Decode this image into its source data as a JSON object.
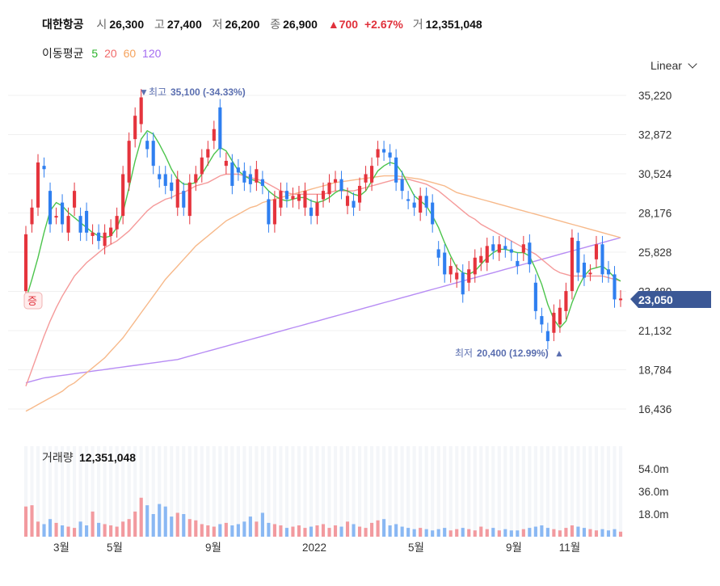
{
  "header": {
    "name": "대한항공",
    "open_label": "시",
    "open": "26,300",
    "high_label": "고",
    "high": "27,400",
    "low_label": "저",
    "low": "26,200",
    "close_label": "종",
    "close": "26,900",
    "change": "700",
    "change_pct": "+2.67%",
    "volume_label": "거",
    "volume": "12,351,048"
  },
  "ma_legend": {
    "label": "이동평균",
    "items": [
      {
        "period": "5",
        "color": "#2ab32a"
      },
      {
        "period": "20",
        "color": "#f16a6a"
      },
      {
        "period": "60",
        "color": "#f5a25c"
      },
      {
        "period": "120",
        "color": "#a46cf0"
      }
    ]
  },
  "scale_selector": {
    "label": "Linear"
  },
  "chart_data": {
    "type": "candlestick",
    "price_axis": {
      "ticks": [
        "35,220",
        "32,872",
        "30,524",
        "28,176",
        "25,828",
        "23,480",
        "21,132",
        "18,784",
        "16,436"
      ],
      "ylim": [
        15000,
        36500
      ]
    },
    "current_price": "23,050",
    "max_annotation": {
      "label": "최고",
      "value": "35,100 (-34.33%)"
    },
    "min_annotation": {
      "label": "최저",
      "value": "20,400 (12.99%)"
    },
    "left_marker": "증",
    "x_labels": [
      "3월",
      "5월",
      "9월",
      "2022",
      "5월",
      "9월",
      "11월"
    ],
    "candles": [
      {
        "o": 23500,
        "c": 26900
      },
      {
        "o": 27500,
        "c": 28500
      },
      {
        "o": 28500,
        "c": 31200
      },
      {
        "o": 31000,
        "c": 30800
      },
      {
        "o": 29500,
        "c": 27500
      },
      {
        "o": 28000,
        "c": 28000
      },
      {
        "o": 28800,
        "c": 27500
      },
      {
        "o": 27000,
        "c": 28000
      },
      {
        "o": 28500,
        "c": 29500
      },
      {
        "o": 28000,
        "c": 27000
      },
      {
        "o": 28300,
        "c": 27000
      },
      {
        "o": 26800,
        "c": 27000
      },
      {
        "o": 27000,
        "c": 26500
      },
      {
        "o": 26200,
        "c": 27000
      },
      {
        "o": 26800,
        "c": 27300
      },
      {
        "o": 27200,
        "c": 28000
      },
      {
        "o": 28000,
        "c": 30500
      },
      {
        "o": 30000,
        "c": 32500
      },
      {
        "o": 32600,
        "c": 34000
      },
      {
        "o": 33500,
        "c": 35100
      },
      {
        "o": 32500,
        "c": 32000
      },
      {
        "o": 32500,
        "c": 31000
      },
      {
        "o": 30500,
        "c": 30200
      },
      {
        "o": 30500,
        "c": 29800
      },
      {
        "o": 30000,
        "c": 29500
      },
      {
        "o": 28500,
        "c": 30200
      },
      {
        "o": 29500,
        "c": 28500
      },
      {
        "o": 28000,
        "c": 30000
      },
      {
        "o": 30000,
        "c": 30500
      },
      {
        "o": 30500,
        "c": 31500
      },
      {
        "o": 31500,
        "c": 32000
      },
      {
        "o": 32500,
        "c": 33200
      },
      {
        "o": 34500,
        "c": 32000
      },
      {
        "o": 31000,
        "c": 31300
      },
      {
        "o": 31200,
        "c": 29800
      },
      {
        "o": 30900,
        "c": 30600
      },
      {
        "o": 30700,
        "c": 30000
      },
      {
        "o": 30500,
        "c": 29900
      },
      {
        "o": 30000,
        "c": 30800
      },
      {
        "o": 30200,
        "c": 29800
      },
      {
        "o": 29000,
        "c": 27500
      },
      {
        "o": 27500,
        "c": 29000
      },
      {
        "o": 28500,
        "c": 29500
      },
      {
        "o": 29500,
        "c": 29000
      },
      {
        "o": 29000,
        "c": 29200
      },
      {
        "o": 28900,
        "c": 29300
      },
      {
        "o": 28500,
        "c": 29500
      },
      {
        "o": 28500,
        "c": 28000
      },
      {
        "o": 28000,
        "c": 28800
      },
      {
        "o": 29000,
        "c": 29500
      },
      {
        "o": 29300,
        "c": 30000
      },
      {
        "o": 30000,
        "c": 30200
      },
      {
        "o": 30200,
        "c": 29500
      },
      {
        "o": 28600,
        "c": 29200
      },
      {
        "o": 28900,
        "c": 28500
      },
      {
        "o": 28800,
        "c": 29800
      },
      {
        "o": 30000,
        "c": 30500
      },
      {
        "o": 30000,
        "c": 31000
      },
      {
        "o": 31500,
        "c": 32000
      },
      {
        "o": 32000,
        "c": 31800
      },
      {
        "o": 31800,
        "c": 31500
      },
      {
        "o": 31500,
        "c": 30000
      },
      {
        "o": 30200,
        "c": 29500
      },
      {
        "o": 29000,
        "c": 28900
      },
      {
        "o": 28800,
        "c": 28500
      },
      {
        "o": 28200,
        "c": 29200
      },
      {
        "o": 29200,
        "c": 28500
      },
      {
        "o": 28800,
        "c": 27500
      },
      {
        "o": 26000,
        "c": 25500
      },
      {
        "o": 25800,
        "c": 24500
      },
      {
        "o": 24500,
        "c": 25000
      },
      {
        "o": 24200,
        "c": 24600
      },
      {
        "o": 24600,
        "c": 23300
      },
      {
        "o": 24000,
        "c": 24800
      },
      {
        "o": 24500,
        "c": 25500
      },
      {
        "o": 25200,
        "c": 25600
      },
      {
        "o": 25200,
        "c": 26200
      },
      {
        "o": 26300,
        "c": 25900
      },
      {
        "o": 25800,
        "c": 26300
      },
      {
        "o": 26200,
        "c": 26000
      },
      {
        "o": 26000,
        "c": 25800
      },
      {
        "o": 25300,
        "c": 25000
      },
      {
        "o": 25800,
        "c": 26300
      },
      {
        "o": 26400,
        "c": 25100
      },
      {
        "o": 24000,
        "c": 22300
      },
      {
        "o": 22000,
        "c": 21500
      },
      {
        "o": 21100,
        "c": 20500
      },
      {
        "o": 21000,
        "c": 22200
      },
      {
        "o": 21500,
        "c": 22500
      },
      {
        "o": 22300,
        "c": 23500
      },
      {
        "o": 23500,
        "c": 26700
      },
      {
        "o": 26500,
        "c": 24600
      },
      {
        "o": 25200,
        "c": 24300
      },
      {
        "o": 24600,
        "c": 24600
      },
      {
        "o": 25400,
        "c": 26300
      },
      {
        "o": 26300,
        "c": 24500
      },
      {
        "o": 24800,
        "c": 24500
      },
      {
        "o": 24500,
        "c": 23000
      },
      {
        "o": 23050,
        "c": 23050
      }
    ],
    "ma5": [
      23000,
      24200,
      25500,
      27000,
      28300,
      28800,
      28600,
      28200,
      27900,
      27600,
      27300,
      27000,
      26800,
      26700,
      26800,
      27300,
      28200,
      29700,
      31300,
      32600,
      33100,
      32900,
      32300,
      31600,
      30800,
      30200,
      29900,
      29900,
      30000,
      30500,
      31100,
      31700,
      32100,
      31900,
      31300,
      30700,
      30400,
      30200,
      30100,
      29900,
      29500,
      29200,
      29000,
      28900,
      29000,
      29100,
      29100,
      28900,
      28800,
      28900,
      29100,
      29400,
      29600,
      29500,
      29300,
      29200,
      29500,
      30100,
      30700,
      31000,
      31200,
      31100,
      30600,
      29900,
      29200,
      28900,
      28600,
      28000,
      27300,
      26400,
      25600,
      24900,
      24600,
      24500,
      24700,
      25100,
      25500,
      25800,
      26000,
      26000,
      25900,
      25800,
      25800,
      25600,
      24800,
      23900,
      22700,
      21800,
      21300,
      21700,
      22800,
      23700,
      24400,
      24800,
      24900,
      25000,
      24700,
      24300,
      24100
    ],
    "ma20": [
      17800,
      18800,
      19800,
      20800,
      21700,
      22500,
      23200,
      23800,
      24400,
      24800,
      25200,
      25500,
      25800,
      26100,
      26300,
      26500,
      26800,
      27100,
      27500,
      27900,
      28300,
      28600,
      28800,
      29000,
      29100,
      29300,
      29400,
      29600,
      29800,
      29900,
      30000,
      30200,
      30400,
      30500,
      30500,
      30500,
      30400,
      30300,
      30200,
      30100,
      29900,
      29700,
      29500,
      29400,
      29300,
      29300,
      29300,
      29300,
      29300,
      29300,
      29400,
      29500,
      29500,
      29500,
      29500,
      29600,
      29700,
      29800,
      29900,
      30000,
      30100,
      30200,
      30200,
      30200,
      30100,
      30000,
      29900,
      29700,
      29500,
      29200,
      28900,
      28600,
      28300,
      28000,
      27800,
      27500,
      27300,
      27100,
      26900,
      26700,
      26500,
      26300,
      26100,
      25900,
      25700,
      25400,
      25100,
      24800,
      24600,
      24500,
      24400,
      24400,
      24400,
      24400,
      24400,
      24400,
      24300,
      24200,
      24100
    ],
    "ma60": [
      16300,
      16500,
      16700,
      16900,
      17100,
      17300,
      17500,
      17800,
      18000,
      18300,
      18600,
      18900,
      19200,
      19500,
      19900,
      20300,
      20700,
      21200,
      21700,
      22200,
      22700,
      23200,
      23700,
      24200,
      24600,
      25000,
      25400,
      25800,
      26200,
      26500,
      26800,
      27100,
      27400,
      27700,
      27900,
      28100,
      28300,
      28500,
      28600,
      28800,
      28900,
      29000,
      29100,
      29200,
      29300,
      29400,
      29500,
      29600,
      29700,
      29800,
      29900,
      30000,
      30050,
      30100,
      30150,
      30200,
      30250,
      30300,
      30350,
      30400,
      30400,
      30400,
      30350,
      30300,
      30250,
      30200,
      30100,
      30000,
      29900,
      29800,
      29600,
      29400,
      29300,
      29200,
      29100,
      29000,
      28900,
      28800,
      28700,
      28600,
      28500,
      28400,
      28300,
      28200,
      28100,
      28000,
      27900,
      27800,
      27700,
      27600,
      27500,
      27400,
      27300,
      27200,
      27100,
      27000,
      26900,
      26800,
      26700
    ],
    "ma120": [
      18000,
      18100,
      18200,
      18300,
      18350,
      18400,
      18450,
      18500,
      18550,
      18600,
      18650,
      18700,
      18750,
      18800,
      18850,
      18900,
      18950,
      19000,
      19050,
      19100,
      19150,
      19200,
      19250,
      19300,
      19350,
      19400,
      19500,
      19600,
      19700,
      19800,
      19900,
      20000,
      20100,
      20200,
      20300,
      20400,
      20500,
      20600,
      20700,
      20800,
      20900,
      21000,
      21100,
      21200,
      21300,
      21400,
      21500,
      21600,
      21700,
      21800,
      21900,
      22000,
      22100,
      22200,
      22300,
      22400,
      22500,
      22600,
      22700,
      22800,
      22900,
      23000,
      23100,
      23200,
      23300,
      23400,
      23500,
      23600,
      23700,
      23800,
      23900,
      24000,
      24100,
      24200,
      24300,
      24400,
      24500,
      24600,
      24700,
      24800,
      24900,
      25000,
      25100,
      25200,
      25300,
      25400,
      25500,
      25600,
      25700,
      25800,
      25900,
      26000,
      26100,
      26200,
      26300,
      26400,
      26500,
      26600,
      26700
    ],
    "volume": {
      "label": "거래량",
      "value": "12,351,048",
      "axis_ticks": [
        "54.0m",
        "36.0m",
        "18.0m"
      ],
      "ylim": [
        0,
        72
      ],
      "bars": [
        24,
        25,
        12,
        10,
        14,
        11,
        9,
        8,
        7,
        12,
        9,
        20,
        11,
        10,
        9,
        8,
        12,
        14,
        20,
        31,
        25,
        18,
        26,
        24,
        16,
        19,
        18,
        14,
        13,
        10,
        9,
        8,
        10,
        11,
        9,
        10,
        12,
        16,
        12,
        19,
        11,
        10,
        9,
        7,
        8,
        9,
        7,
        8,
        9,
        10,
        7,
        9,
        8,
        12,
        10,
        8,
        7,
        11,
        13,
        14,
        9,
        10,
        8,
        7,
        6,
        7,
        6,
        5,
        6,
        7,
        5,
        6,
        7,
        6,
        5,
        8,
        6,
        7,
        5,
        6,
        5,
        5,
        6,
        7,
        8,
        9,
        7,
        6,
        5,
        7,
        9,
        8,
        7,
        6,
        5,
        6,
        5,
        6,
        4
      ]
    }
  }
}
